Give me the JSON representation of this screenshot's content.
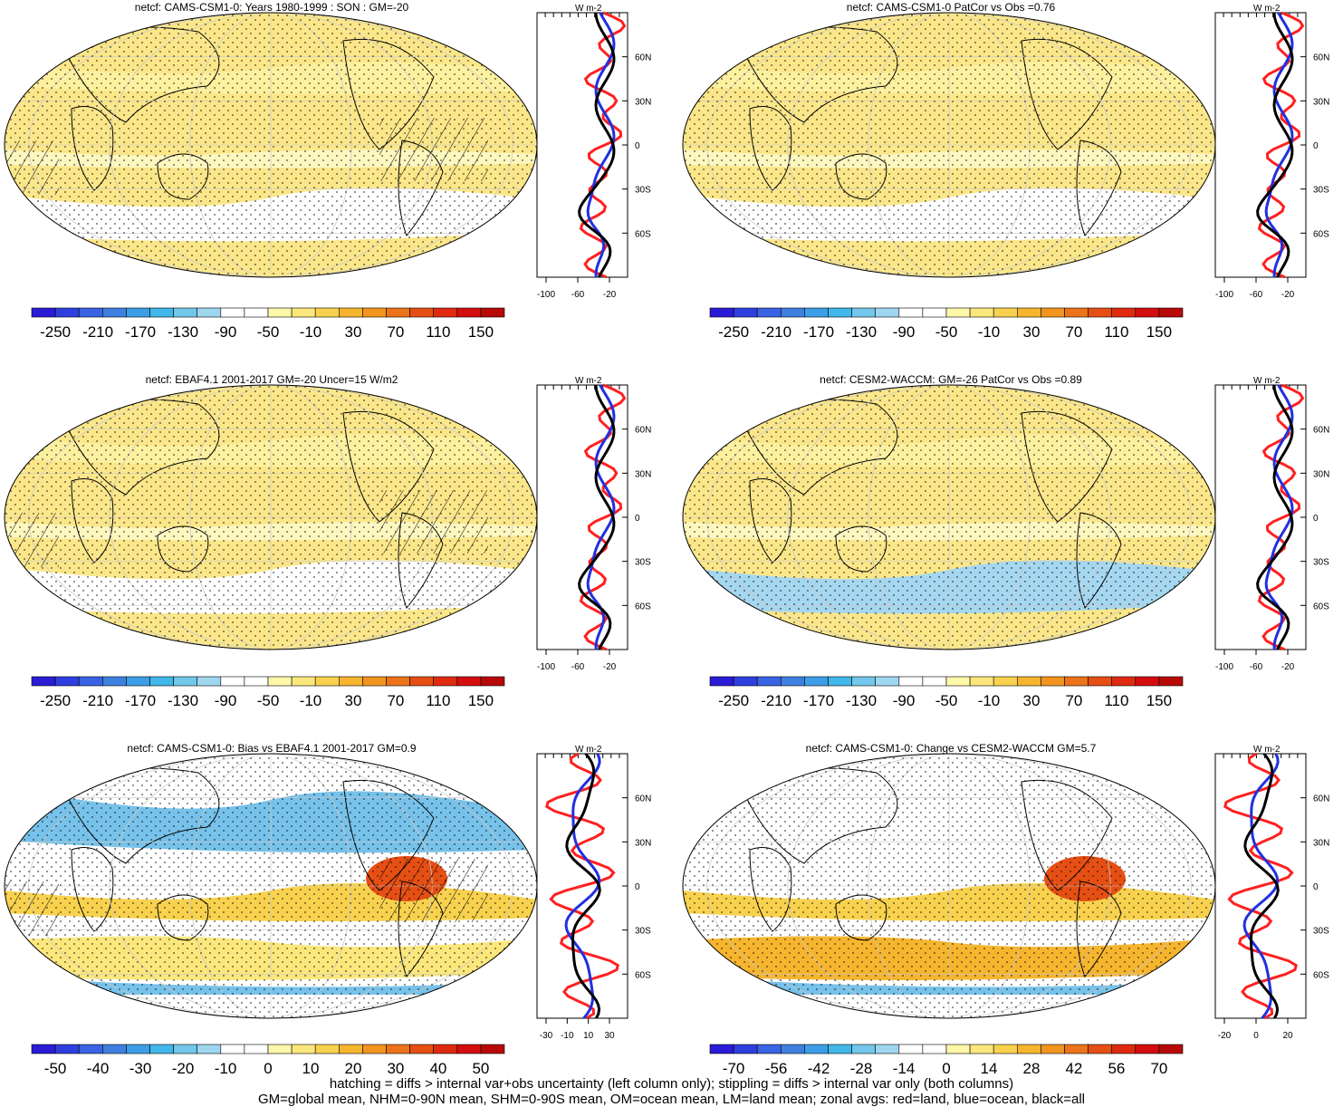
{
  "chart_data": [
    {
      "type": "heatmap",
      "title": "netcf: CAMS-CSM1-0: Years 1980-1999 : SON : GM=-20",
      "colorbar": {
        "labels": [
          "-250",
          "-210",
          "-170",
          "-130",
          "-90",
          "-50",
          "-10",
          "30",
          "70",
          "110",
          "150"
        ]
      },
      "zonal": {
        "xticks": [
          "-100",
          "-60",
          "-20"
        ],
        "yticks": [
          "60N",
          "30N",
          "0",
          "30S",
          "60S"
        ],
        "unit": "W m-2"
      }
    },
    {
      "type": "heatmap",
      "title": "netcf: CAMS-CSM1-0 PatCor vs Obs =0.76",
      "colorbar": {
        "labels": [
          "-250",
          "-210",
          "-170",
          "-130",
          "-90",
          "-50",
          "-10",
          "30",
          "70",
          "110",
          "150"
        ]
      },
      "zonal": {
        "xticks": [
          "-100",
          "-60",
          "-20"
        ],
        "yticks": [
          "60N",
          "30N",
          "0",
          "30S",
          "60S"
        ],
        "unit": "W m-2"
      }
    },
    {
      "type": "heatmap",
      "title": "netcf: EBAF4.1 2001-2017 GM=-20 Uncer=15 W/m2",
      "colorbar": {
        "labels": [
          "-250",
          "-210",
          "-170",
          "-130",
          "-90",
          "-50",
          "-10",
          "30",
          "70",
          "110",
          "150"
        ]
      },
      "zonal": {
        "xticks": [
          "-100",
          "-60",
          "-20"
        ],
        "yticks": [
          "60N",
          "30N",
          "0",
          "30S",
          "60S"
        ],
        "unit": "W m-2"
      }
    },
    {
      "type": "heatmap",
      "title": "netcf: CESM2-WACCM: GM=-26 PatCor vs Obs =0.89",
      "colorbar": {
        "labels": [
          "-250",
          "-210",
          "-170",
          "-130",
          "-90",
          "-50",
          "-10",
          "30",
          "70",
          "110",
          "150"
        ]
      },
      "zonal": {
        "xticks": [
          "-100",
          "-60",
          "-20"
        ],
        "yticks": [
          "60N",
          "30N",
          "0",
          "30S",
          "60S"
        ],
        "unit": "W m-2"
      }
    },
    {
      "type": "heatmap",
      "title": "netcf: CAMS-CSM1-0: Bias vs EBAF4.1 2001-2017  GM=0.9",
      "colorbar": {
        "labels": [
          "-50",
          "-40",
          "-30",
          "-20",
          "-10",
          "0",
          "10",
          "20",
          "30",
          "40",
          "50"
        ]
      },
      "zonal": {
        "xticks": [
          "-30",
          "-10",
          "10",
          "30"
        ],
        "yticks": [
          "60N",
          "30N",
          "0",
          "30S",
          "60S"
        ],
        "unit": "W m-2"
      }
    },
    {
      "type": "heatmap",
      "title": "netcf: CAMS-CSM1-0: Change vs CESM2-WACCM GM=5.7",
      "colorbar": {
        "labels": [
          "-70",
          "-56",
          "-42",
          "-28",
          "-14",
          "0",
          "14",
          "28",
          "42",
          "56",
          "70"
        ]
      },
      "zonal": {
        "xticks": [
          "-20",
          "0",
          "20"
        ],
        "yticks": [
          "60N",
          "30N",
          "0",
          "30S",
          "60S"
        ],
        "unit": "W m-2"
      }
    }
  ],
  "colors": {
    "colorbar": [
      "#2b1bd6",
      "#2e3fe0",
      "#3a63e3",
      "#3f7fe0",
      "#3c9ee6",
      "#41b7ea",
      "#72c7ea",
      "#9fd6ef",
      "#ffffff",
      "#ffffff",
      "#fdf7a9",
      "#fbe77c",
      "#f8d24e",
      "#f6b52e",
      "#f2951f",
      "#ec7319",
      "#e64f14",
      "#df2a10",
      "#d40e0e",
      "#b80909"
    ],
    "map_warm": "#fbe78a",
    "map_cool": "#77c2ea",
    "land_line": "#ff2020",
    "ocean_line": "#2030e0",
    "all_line": "#000000"
  },
  "footer": {
    "line1": "hatching = diffs > internal var+obs uncertainty (left column only); stippling = diffs > internal var only (both columns)",
    "line2": "GM=global mean, NHM=0-90N mean, SHM=0-90S mean, OM=ocean mean, LM=land mean; zonal avgs: red=land, blue=ocean, black=all"
  }
}
